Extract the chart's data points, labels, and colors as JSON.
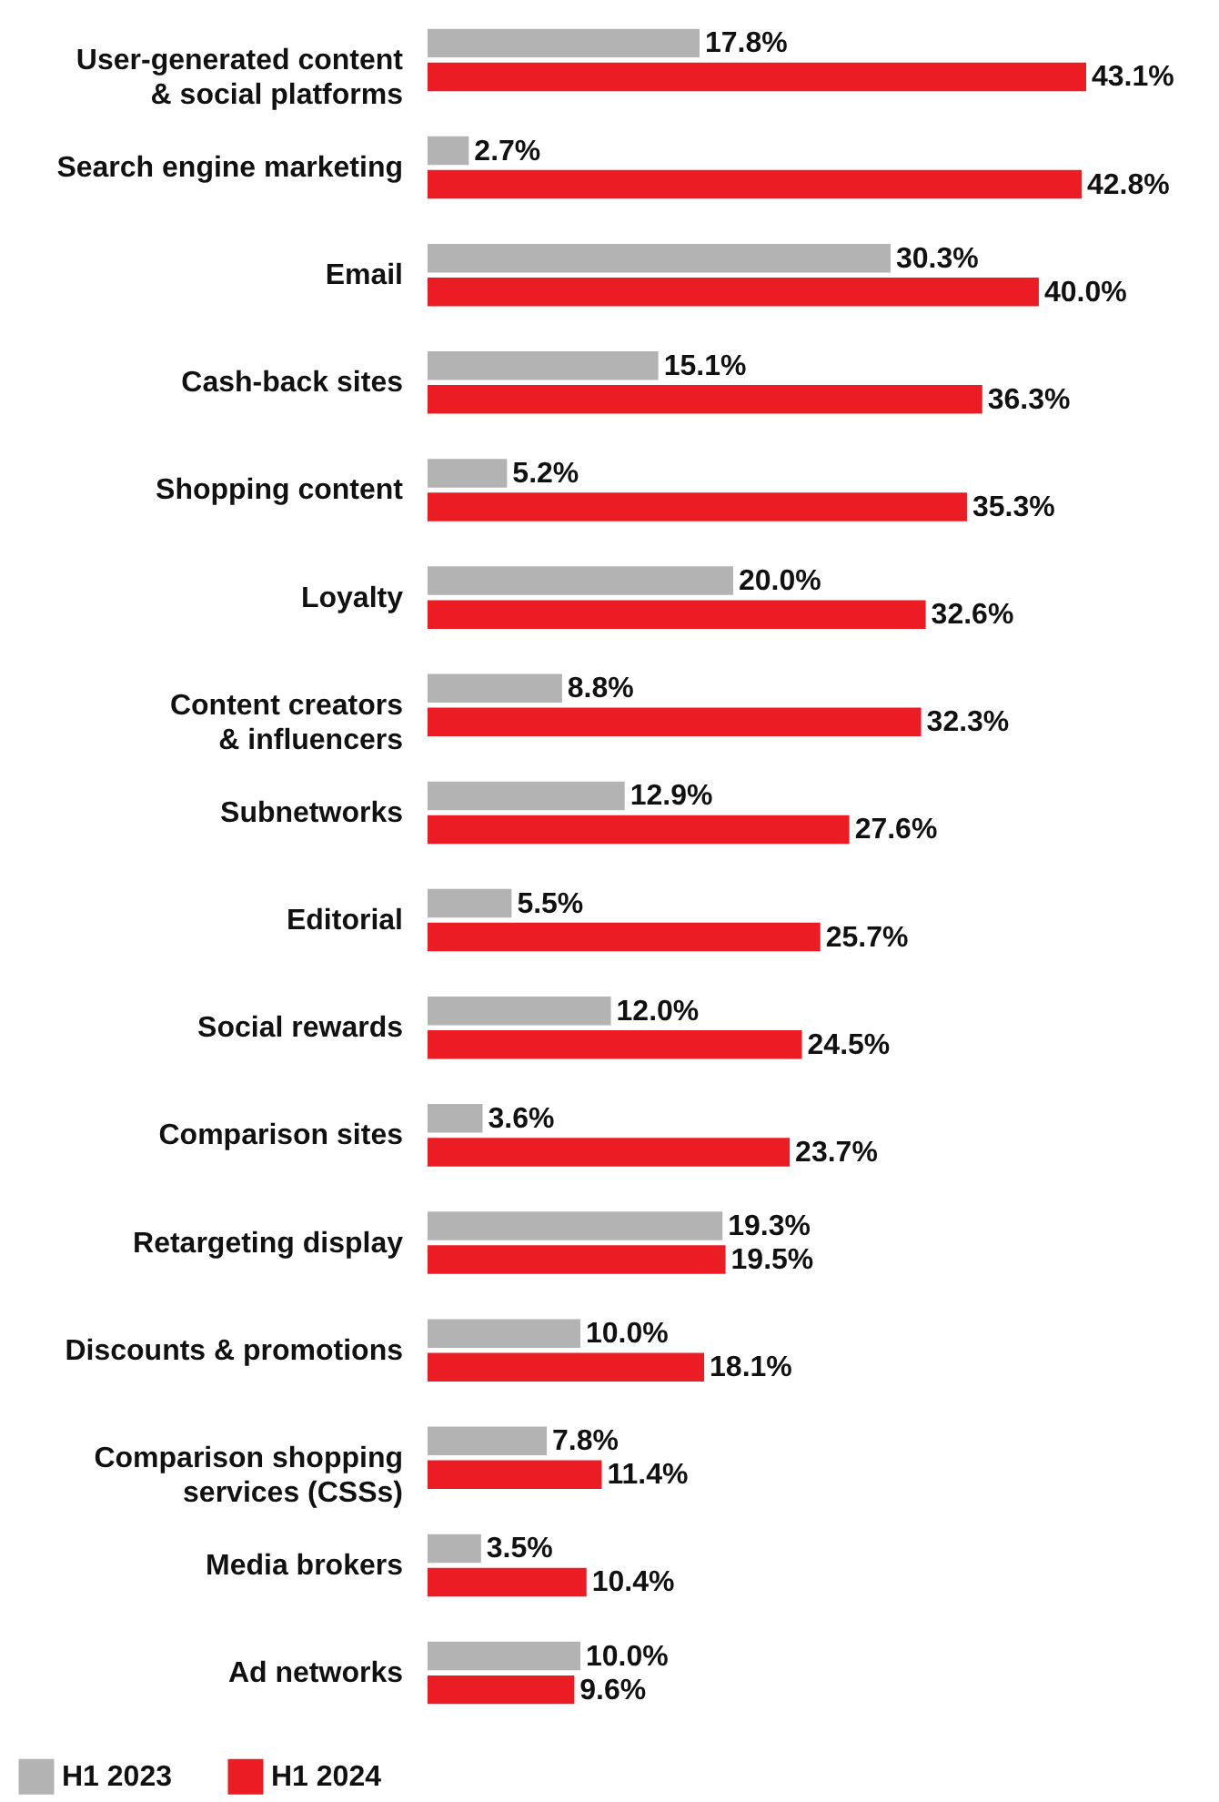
{
  "chart_data": {
    "type": "bar",
    "orientation": "horizontal",
    "legend": "bottom left",
    "categories": [
      "User-generated content\n& social platforms",
      "Search engine marketing",
      "Email",
      "Cash-back sites",
      "Shopping content",
      "Loyalty",
      "Content creators\n& influencers",
      "Subnetworks",
      "Editorial",
      "Social rewards",
      "Comparison sites",
      "Retargeting display",
      "Discounts & promotions",
      "Comparison shopping\nservices (CSSs)",
      "Media brokers",
      "Ad networks"
    ],
    "series": [
      {
        "name": "H1 2023",
        "color": "#b3b3b3",
        "values": [
          17.8,
          2.7,
          30.3,
          15.1,
          5.2,
          20.0,
          8.8,
          12.9,
          5.5,
          12.0,
          3.6,
          19.3,
          10.0,
          7.8,
          3.5,
          10.0
        ],
        "value_labels": [
          "17.8%",
          "2.7%",
          "30.3%",
          "15.1%",
          "5.2%",
          "20.0%",
          "8.8%",
          "12.9%",
          "5.5%",
          "12.0%",
          "3.6%",
          "19.3%",
          "10.0%",
          "7.8%",
          "3.5%",
          "10.0%"
        ]
      },
      {
        "name": "H1 2024",
        "color": "#ec1c24",
        "values": [
          43.1,
          42.8,
          40.0,
          36.3,
          35.3,
          32.6,
          32.3,
          27.6,
          25.7,
          24.5,
          23.7,
          19.5,
          18.1,
          11.4,
          10.4,
          9.6
        ],
        "value_labels": [
          "43.1%",
          "42.8%",
          "40.0%",
          "36.3%",
          "35.3%",
          "32.6%",
          "32.3%",
          "27.6%",
          "25.7%",
          "24.5%",
          "23.7%",
          "19.5%",
          "18.1%",
          "11.4%",
          "10.4%",
          "9.6%"
        ]
      }
    ]
  }
}
